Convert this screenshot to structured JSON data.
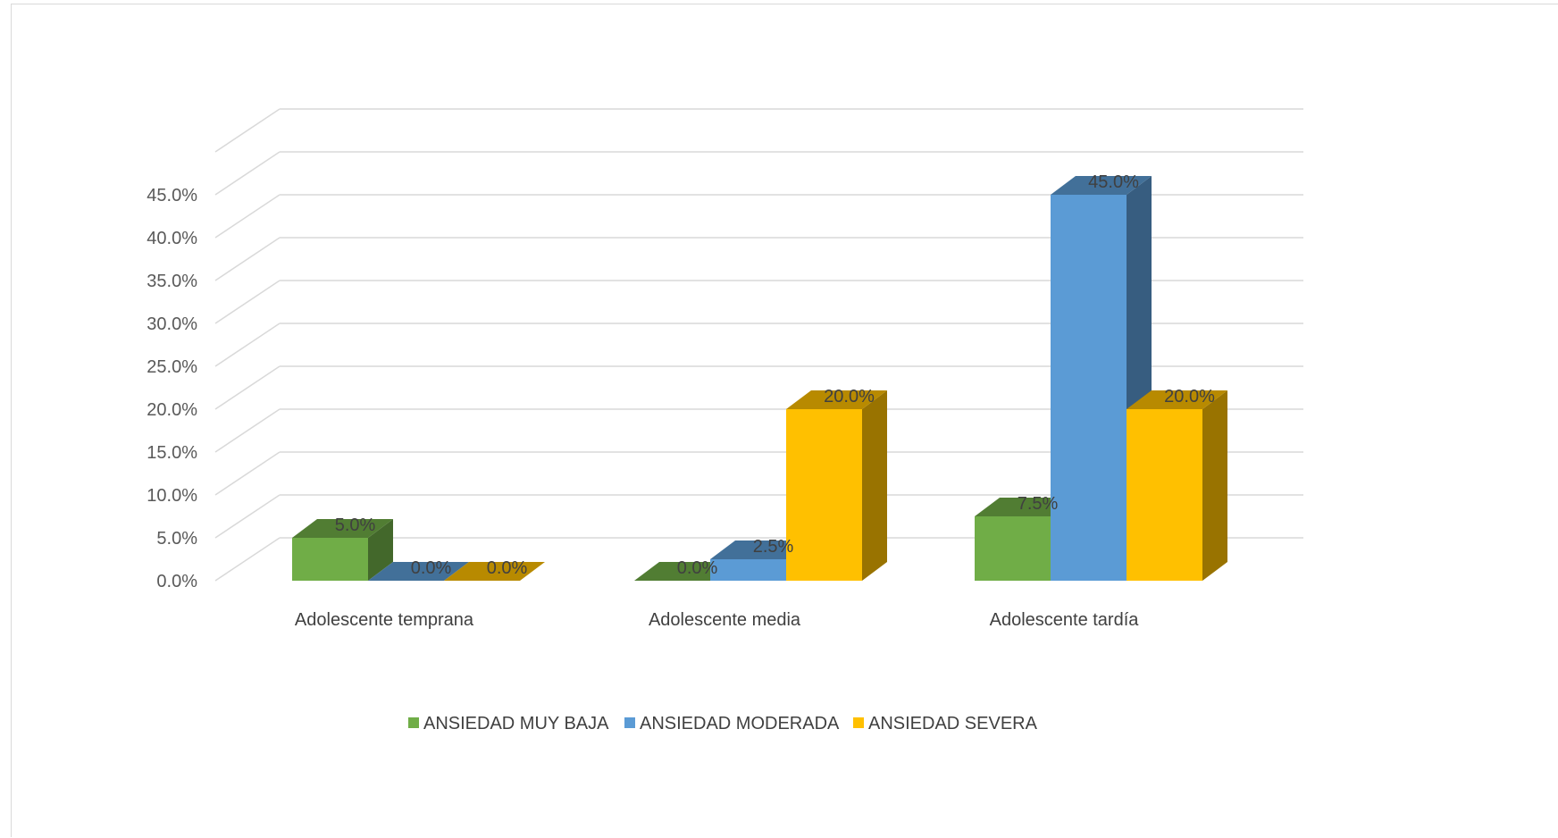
{
  "chart_data": {
    "type": "bar",
    "style": "3d-clustered-column",
    "title": "",
    "xlabel": "",
    "ylabel": "",
    "categories": [
      "Adolescente temprana",
      "Adolescente media",
      "Adolescente tardía"
    ],
    "series": [
      {
        "name": "ANSIEDAD MUY BAJA",
        "values": [
          5.0,
          0.0,
          7.5
        ],
        "color": "#70ad47",
        "labels": [
          "5.0%",
          "0.0%",
          "7.5%"
        ]
      },
      {
        "name": "ANSIEDAD MODERADA",
        "values": [
          0.0,
          2.5,
          45.0
        ],
        "color": "#5b9bd5",
        "labels": [
          "0.0%",
          "2.5%",
          "45.0%"
        ]
      },
      {
        "name": "ANSIEDAD SEVERA",
        "values": [
          0.0,
          20.0,
          20.0
        ],
        "color": "#ffc000",
        "labels": [
          "0.0%",
          "20.0%",
          "20.0%"
        ]
      }
    ],
    "ylim": [
      0,
      50
    ],
    "yticks": [
      0,
      5,
      10,
      15,
      20,
      25,
      30,
      35,
      40,
      45
    ],
    "ytick_labels": [
      "0.0%",
      "5.0%",
      "10.0%",
      "15.0%",
      "20.0%",
      "25.0%",
      "30.0%",
      "35.0%",
      "40.0%",
      "45.0%"
    ],
    "grid": true,
    "legend_position": "bottom"
  }
}
